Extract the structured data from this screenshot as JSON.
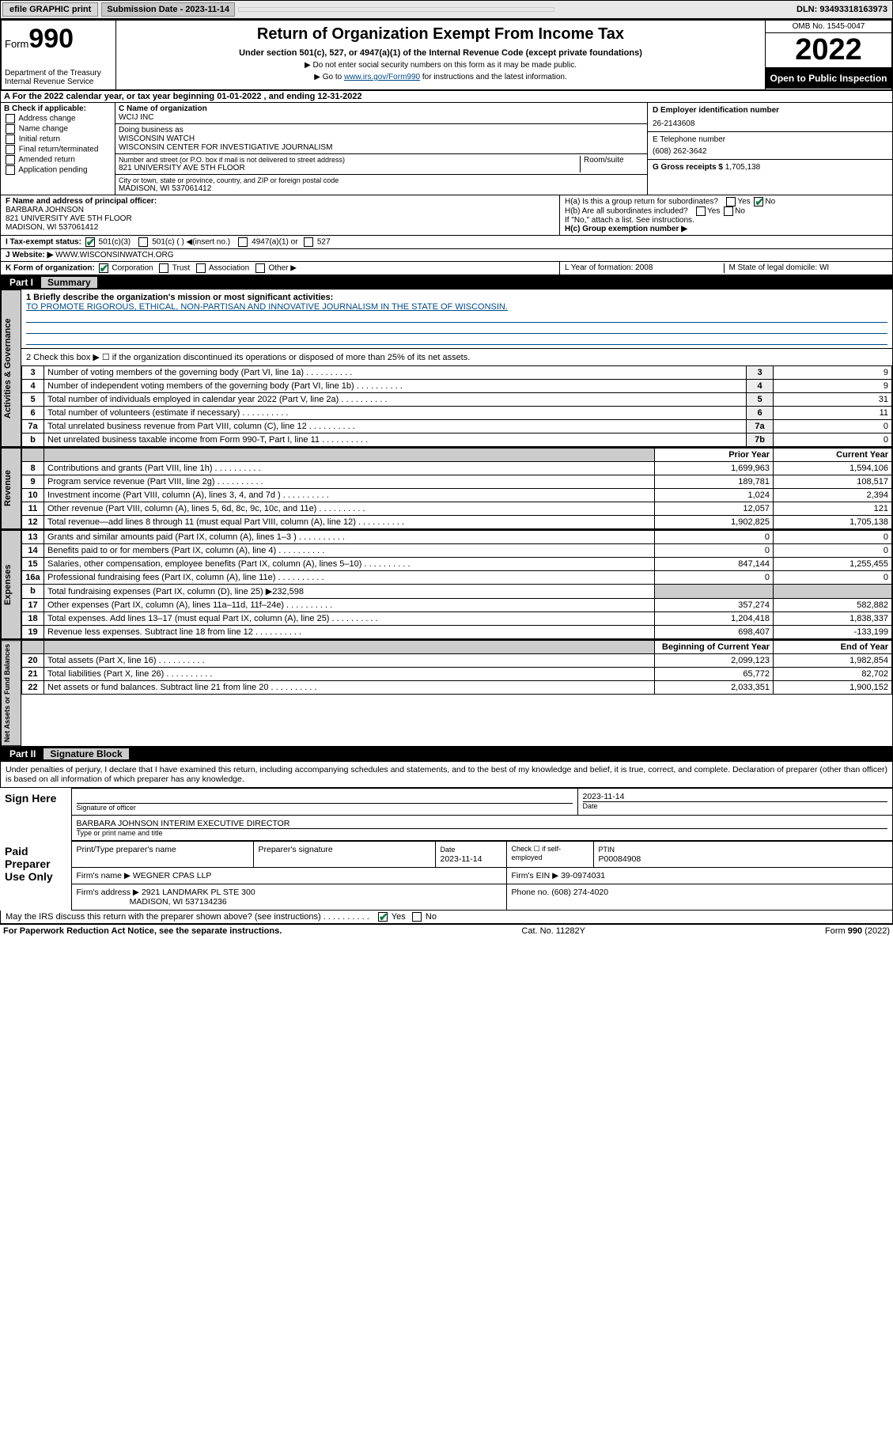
{
  "topbar": {
    "efile": "efile GRAPHIC print",
    "submission_label": "Submission Date - 2023-11-14",
    "dln": "DLN: 93493318163973"
  },
  "header": {
    "form_label": "Form",
    "form_num": "990",
    "dept": "Department of the Treasury Internal Revenue Service",
    "title": "Return of Organization Exempt From Income Tax",
    "sub": "Under section 501(c), 527, or 4947(a)(1) of the Internal Revenue Code (except private foundations)",
    "note1": "▶ Do not enter social security numbers on this form as it may be made public.",
    "note2_pre": "▶ Go to ",
    "note2_link": "www.irs.gov/Form990",
    "note2_post": " for instructions and the latest information.",
    "omb": "OMB No. 1545-0047",
    "year": "2022",
    "open": "Open to Public Inspection"
  },
  "section_a": "A For the 2022 calendar year, or tax year beginning 01-01-2022   , and ending 12-31-2022",
  "col_b": {
    "title": "B Check if applicable:",
    "opts": [
      "Address change",
      "Name change",
      "Initial return",
      "Final return/terminated",
      "Amended return",
      "Application pending"
    ]
  },
  "col_c": {
    "name_label": "C Name of organization",
    "name": "WCIJ INC",
    "dba_label": "Doing business as",
    "dba1": "WISCONSIN WATCH",
    "dba2": "WISCONSIN CENTER FOR INVESTIGATIVE JOURNALISM",
    "addr_label": "Number and street (or P.O. box if mail is not delivered to street address)",
    "room_label": "Room/suite",
    "addr": "821 UNIVERSITY AVE 5TH FLOOR",
    "city_label": "City or town, state or province, country, and ZIP or foreign postal code",
    "city": "MADISON, WI  537061412"
  },
  "col_d": {
    "d_label": "D Employer identification number",
    "ein": "26-2143608",
    "e_label": "E Telephone number",
    "phone": "(608) 262-3642",
    "g_label": "G Gross receipts $ ",
    "gross": "1,705,138"
  },
  "row_f": {
    "f_label": "F Name and address of principal officer:",
    "name": "BARBARA JOHNSON",
    "addr1": "821 UNIVERSITY AVE 5TH FLOOR",
    "addr2": "MADISON, WI  537061412",
    "ha": "H(a)  Is this a group return for subordinates?",
    "hb": "H(b)  Are all subordinates included?",
    "hb_note": "If \"No,\" attach a list. See instructions.",
    "hc": "H(c)  Group exemption number ▶"
  },
  "row_i": {
    "label": "I   Tax-exempt status:",
    "opts": [
      "501(c)(3)",
      "501(c) (  ) ◀(insert no.)",
      "4947(a)(1) or",
      "527"
    ]
  },
  "row_j": {
    "label": "J   Website: ▶",
    "val": "WWW.WISCONSINWATCH.ORG"
  },
  "row_k": {
    "label": "K Form of organization:",
    "opts": [
      "Corporation",
      "Trust",
      "Association",
      "Other ▶"
    ],
    "l": "L Year of formation: 2008",
    "m": "M State of legal domicile: WI"
  },
  "part1": {
    "num": "Part I",
    "title": "Summary"
  },
  "summary1": {
    "label": "1  Briefly describe the organization's mission or most significant activities:",
    "mission": "TO PROMOTE RIGOROUS, ETHICAL, NON-PARTISAN AND INNOVATIVE JOURNALISM IN THE STATE OF WISCONSIN."
  },
  "summary2": "2   Check this box ▶ ☐  if the organization discontinued its operations or disposed of more than 25% of its net assets.",
  "gov_rows": [
    {
      "n": "3",
      "t": "Number of voting members of the governing body (Part VI, line 1a)",
      "box": "3",
      "v": "9"
    },
    {
      "n": "4",
      "t": "Number of independent voting members of the governing body (Part VI, line 1b)",
      "box": "4",
      "v": "9"
    },
    {
      "n": "5",
      "t": "Total number of individuals employed in calendar year 2022 (Part V, line 2a)",
      "box": "5",
      "v": "31"
    },
    {
      "n": "6",
      "t": "Total number of volunteers (estimate if necessary)",
      "box": "6",
      "v": "11"
    },
    {
      "n": "7a",
      "t": "Total unrelated business revenue from Part VIII, column (C), line 12",
      "box": "7a",
      "v": "0"
    },
    {
      "n": "b",
      "t": "Net unrelated business taxable income from Form 990-T, Part I, line 11",
      "box": "7b",
      "v": "0"
    }
  ],
  "rev_header": {
    "py": "Prior Year",
    "cy": "Current Year"
  },
  "rev_rows": [
    {
      "n": "8",
      "t": "Contributions and grants (Part VIII, line 1h)",
      "py": "1,699,963",
      "cy": "1,594,106"
    },
    {
      "n": "9",
      "t": "Program service revenue (Part VIII, line 2g)",
      "py": "189,781",
      "cy": "108,517"
    },
    {
      "n": "10",
      "t": "Investment income (Part VIII, column (A), lines 3, 4, and 7d )",
      "py": "1,024",
      "cy": "2,394"
    },
    {
      "n": "11",
      "t": "Other revenue (Part VIII, column (A), lines 5, 6d, 8c, 9c, 10c, and 11e)",
      "py": "12,057",
      "cy": "121"
    },
    {
      "n": "12",
      "t": "Total revenue—add lines 8 through 11 (must equal Part VIII, column (A), line 12)",
      "py": "1,902,825",
      "cy": "1,705,138"
    }
  ],
  "exp_rows": [
    {
      "n": "13",
      "t": "Grants and similar amounts paid (Part IX, column (A), lines 1–3 )",
      "py": "0",
      "cy": "0"
    },
    {
      "n": "14",
      "t": "Benefits paid to or for members (Part IX, column (A), line 4)",
      "py": "0",
      "cy": "0"
    },
    {
      "n": "15",
      "t": "Salaries, other compensation, employee benefits (Part IX, column (A), lines 5–10)",
      "py": "847,144",
      "cy": "1,255,455"
    },
    {
      "n": "16a",
      "t": "Professional fundraising fees (Part IX, column (A), line 11e)",
      "py": "0",
      "cy": "0"
    },
    {
      "n": "b",
      "t": "Total fundraising expenses (Part IX, column (D), line 25) ▶232,598",
      "py": "",
      "cy": "",
      "grey": true
    },
    {
      "n": "17",
      "t": "Other expenses (Part IX, column (A), lines 11a–11d, 11f–24e)",
      "py": "357,274",
      "cy": "582,882"
    },
    {
      "n": "18",
      "t": "Total expenses. Add lines 13–17 (must equal Part IX, column (A), line 25)",
      "py": "1,204,418",
      "cy": "1,838,337"
    },
    {
      "n": "19",
      "t": "Revenue less expenses. Subtract line 18 from line 12",
      "py": "698,407",
      "cy": "-133,199"
    }
  ],
  "net_header": {
    "b": "Beginning of Current Year",
    "e": "End of Year"
  },
  "net_rows": [
    {
      "n": "20",
      "t": "Total assets (Part X, line 16)",
      "py": "2,099,123",
      "cy": "1,982,854"
    },
    {
      "n": "21",
      "t": "Total liabilities (Part X, line 26)",
      "py": "65,772",
      "cy": "82,702"
    },
    {
      "n": "22",
      "t": "Net assets or fund balances. Subtract line 21 from line 20",
      "py": "2,033,351",
      "cy": "1,900,152"
    }
  ],
  "side_labels": {
    "gov": "Activities & Governance",
    "rev": "Revenue",
    "exp": "Expenses",
    "net": "Net Assets or Fund Balances"
  },
  "part2": {
    "num": "Part II",
    "title": "Signature Block"
  },
  "sig_decl": "Under penalties of perjury, I declare that I have examined this return, including accompanying schedules and statements, and to the best of my knowledge and belief, it is true, correct, and complete. Declaration of preparer (other than officer) is based on all information of which preparer has any knowledge.",
  "sign_here": {
    "label": "Sign Here",
    "sig_of_officer": "Signature of officer",
    "date": "2023-11-14",
    "date_label": "Date",
    "name": "BARBARA JOHNSON  INTERIM EXECUTIVE DIRECTOR",
    "name_label": "Type or print name and title"
  },
  "paid": {
    "label": "Paid Preparer Use Only",
    "h1": "Print/Type preparer's name",
    "h2": "Preparer's signature",
    "h3_label": "Date",
    "h3": "2023-11-14",
    "h4": "Check ☐ if self-employed",
    "h5_label": "PTIN",
    "h5": "P00084908",
    "firm_name_label": "Firm's name    ▶",
    "firm_name": "WEGNER CPAS LLP",
    "firm_ein_label": "Firm's EIN ▶",
    "firm_ein": "39-0974031",
    "firm_addr_label": "Firm's address ▶",
    "firm_addr1": "2921 LANDMARK PL STE 300",
    "firm_addr2": "MADISON, WI  537134236",
    "phone_label": "Phone no.",
    "phone": "(608) 274-4020"
  },
  "discuss": "May the IRS discuss this return with the preparer shown above? (see instructions)",
  "footer": {
    "left": "For Paperwork Reduction Act Notice, see the separate instructions.",
    "mid": "Cat. No. 11282Y",
    "right_pre": "Form ",
    "right_form": "990",
    "right_post": " (2022)"
  }
}
